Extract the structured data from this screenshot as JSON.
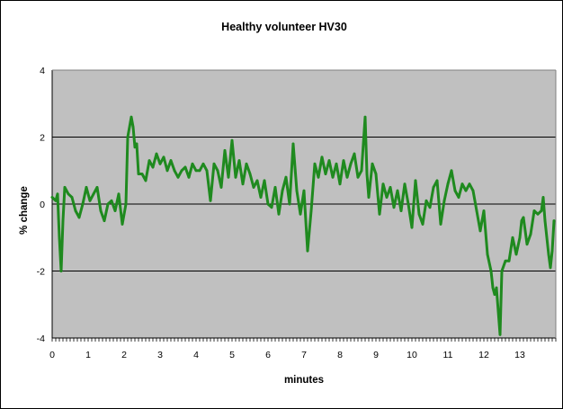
{
  "chart_data": {
    "type": "line",
    "title": "Healthy volunteer HV30",
    "xlabel": "minutes",
    "ylabel": "% change",
    "xlim": [
      0,
      14
    ],
    "ylim": [
      -4,
      4
    ],
    "x_ticks": [
      "0",
      "1",
      "2",
      "3",
      "4",
      "5",
      "6",
      "7",
      "8",
      "9",
      "10",
      "11",
      "12",
      "13"
    ],
    "y_ticks": [
      "4",
      "2",
      "0",
      "-2",
      "-4"
    ],
    "grid": true,
    "legend": "none",
    "colors": {
      "plot_bg": "#c0c0c0",
      "line": "#1f8a1f",
      "grid": "#000000",
      "outer": "#000000"
    },
    "series": [
      {
        "points": [
          [
            0.0,
            0.2
          ],
          [
            0.1,
            0.1
          ],
          [
            0.15,
            0.3
          ],
          [
            0.2,
            -1.0
          ],
          [
            0.25,
            -2.0
          ],
          [
            0.3,
            -0.5
          ],
          [
            0.35,
            0.5
          ],
          [
            0.45,
            0.3
          ],
          [
            0.55,
            0.2
          ],
          [
            0.65,
            -0.2
          ],
          [
            0.75,
            -0.4
          ],
          [
            0.85,
            0.0
          ],
          [
            0.95,
            0.5
          ],
          [
            1.05,
            0.1
          ],
          [
            1.15,
            0.3
          ],
          [
            1.25,
            0.5
          ],
          [
            1.35,
            -0.2
          ],
          [
            1.45,
            -0.5
          ],
          [
            1.55,
            0.0
          ],
          [
            1.65,
            0.1
          ],
          [
            1.75,
            -0.2
          ],
          [
            1.85,
            0.3
          ],
          [
            1.95,
            -0.6
          ],
          [
            2.05,
            0.0
          ],
          [
            2.1,
            2.0
          ],
          [
            2.2,
            2.6
          ],
          [
            2.25,
            2.3
          ],
          [
            2.3,
            1.7
          ],
          [
            2.35,
            1.8
          ],
          [
            2.4,
            0.9
          ],
          [
            2.5,
            0.9
          ],
          [
            2.6,
            0.7
          ],
          [
            2.7,
            1.3
          ],
          [
            2.8,
            1.1
          ],
          [
            2.9,
            1.5
          ],
          [
            3.0,
            1.2
          ],
          [
            3.1,
            1.4
          ],
          [
            3.2,
            1.0
          ],
          [
            3.3,
            1.3
          ],
          [
            3.4,
            1.0
          ],
          [
            3.5,
            0.8
          ],
          [
            3.6,
            1.0
          ],
          [
            3.7,
            1.1
          ],
          [
            3.8,
            0.8
          ],
          [
            3.9,
            1.2
          ],
          [
            4.0,
            1.0
          ],
          [
            4.1,
            1.0
          ],
          [
            4.2,
            1.2
          ],
          [
            4.3,
            1.0
          ],
          [
            4.4,
            0.1
          ],
          [
            4.5,
            1.2
          ],
          [
            4.6,
            1.0
          ],
          [
            4.7,
            0.5
          ],
          [
            4.8,
            1.6
          ],
          [
            4.9,
            0.8
          ],
          [
            5.0,
            1.9
          ],
          [
            5.1,
            0.8
          ],
          [
            5.2,
            1.3
          ],
          [
            5.3,
            0.6
          ],
          [
            5.4,
            1.2
          ],
          [
            5.5,
            0.9
          ],
          [
            5.6,
            0.5
          ],
          [
            5.7,
            0.7
          ],
          [
            5.8,
            0.2
          ],
          [
            5.9,
            0.7
          ],
          [
            6.0,
            0.0
          ],
          [
            6.1,
            -0.1
          ],
          [
            6.2,
            0.5
          ],
          [
            6.3,
            -0.3
          ],
          [
            6.4,
            0.4
          ],
          [
            6.5,
            0.8
          ],
          [
            6.6,
            0.0
          ],
          [
            6.7,
            1.8
          ],
          [
            6.8,
            0.4
          ],
          [
            6.9,
            -0.3
          ],
          [
            7.0,
            0.4
          ],
          [
            7.05,
            -0.5
          ],
          [
            7.1,
            -1.4
          ],
          [
            7.2,
            -0.2
          ],
          [
            7.3,
            1.2
          ],
          [
            7.4,
            0.8
          ],
          [
            7.5,
            1.4
          ],
          [
            7.6,
            0.9
          ],
          [
            7.7,
            1.3
          ],
          [
            7.8,
            0.8
          ],
          [
            7.9,
            1.2
          ],
          [
            8.0,
            0.6
          ],
          [
            8.1,
            1.3
          ],
          [
            8.2,
            0.8
          ],
          [
            8.3,
            1.2
          ],
          [
            8.4,
            1.5
          ],
          [
            8.5,
            0.8
          ],
          [
            8.6,
            1.0
          ],
          [
            8.7,
            2.6
          ],
          [
            8.75,
            0.9
          ],
          [
            8.8,
            0.2
          ],
          [
            8.9,
            1.2
          ],
          [
            9.0,
            0.9
          ],
          [
            9.1,
            -0.3
          ],
          [
            9.2,
            0.6
          ],
          [
            9.3,
            0.2
          ],
          [
            9.4,
            0.5
          ],
          [
            9.5,
            -0.1
          ],
          [
            9.6,
            0.4
          ],
          [
            9.7,
            -0.2
          ],
          [
            9.8,
            0.6
          ],
          [
            9.9,
            0.0
          ],
          [
            10.0,
            -0.7
          ],
          [
            10.1,
            0.7
          ],
          [
            10.2,
            -0.3
          ],
          [
            10.3,
            -0.6
          ],
          [
            10.4,
            0.1
          ],
          [
            10.5,
            -0.1
          ],
          [
            10.6,
            0.5
          ],
          [
            10.7,
            0.7
          ],
          [
            10.8,
            -0.6
          ],
          [
            10.9,
            0.1
          ],
          [
            11.0,
            0.6
          ],
          [
            11.1,
            1.0
          ],
          [
            11.2,
            0.4
          ],
          [
            11.3,
            0.2
          ],
          [
            11.4,
            0.6
          ],
          [
            11.5,
            0.4
          ],
          [
            11.6,
            0.6
          ],
          [
            11.7,
            0.4
          ],
          [
            11.8,
            -0.2
          ],
          [
            11.9,
            -0.8
          ],
          [
            12.0,
            -0.2
          ],
          [
            12.1,
            -1.5
          ],
          [
            12.2,
            -2.0
          ],
          [
            12.25,
            -2.5
          ],
          [
            12.3,
            -2.7
          ],
          [
            12.35,
            -2.5
          ],
          [
            12.4,
            -3.2
          ],
          [
            12.45,
            -3.9
          ],
          [
            12.5,
            -2.0
          ],
          [
            12.6,
            -1.7
          ],
          [
            12.7,
            -1.7
          ],
          [
            12.8,
            -1.0
          ],
          [
            12.9,
            -1.5
          ],
          [
            13.0,
            -1.0
          ],
          [
            13.05,
            -0.5
          ],
          [
            13.1,
            -0.4
          ],
          [
            13.2,
            -1.2
          ],
          [
            13.3,
            -0.9
          ],
          [
            13.4,
            -0.2
          ],
          [
            13.5,
            -0.3
          ],
          [
            13.6,
            -0.2
          ],
          [
            13.65,
            0.2
          ],
          [
            13.7,
            -0.5
          ],
          [
            13.8,
            -1.5
          ],
          [
            13.85,
            -1.9
          ],
          [
            13.9,
            -1.4
          ],
          [
            13.95,
            -0.5
          ]
        ]
      }
    ]
  }
}
